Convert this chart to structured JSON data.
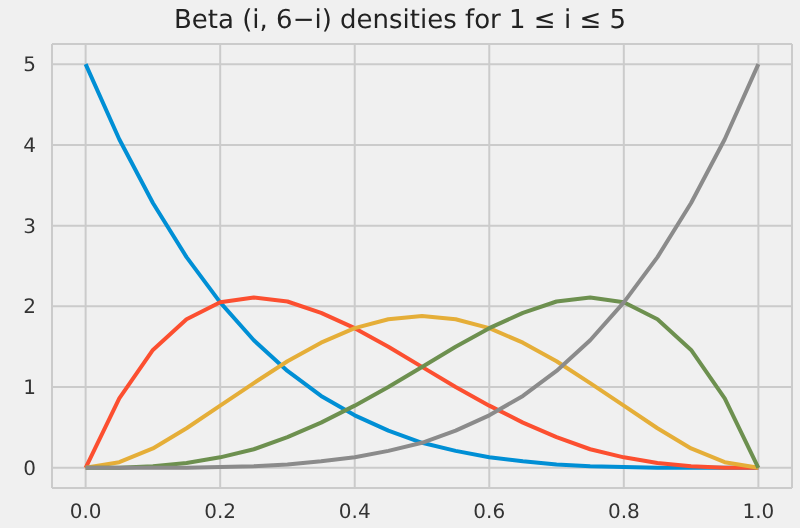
{
  "chart_data": {
    "type": "line",
    "title": "Beta (i, 6−i) densities for 1 ≤ i ≤ 5",
    "x": [
      0,
      0.05,
      0.1,
      0.15,
      0.2,
      0.25,
      0.3,
      0.35,
      0.4,
      0.45,
      0.5,
      0.55,
      0.6,
      0.65,
      0.7,
      0.75,
      0.8,
      0.85,
      0.9,
      0.95,
      1
    ],
    "series": [
      {
        "color": "#008fd5",
        "values": [
          5,
          4.07,
          3.28,
          2.61,
          2.05,
          1.58,
          1.2,
          0.89,
          0.65,
          0.46,
          0.31,
          0.21,
          0.13,
          0.08,
          0.04,
          0.02,
          0.01,
          0,
          0,
          0,
          0
        ]
      },
      {
        "color": "#fc4f30",
        "values": [
          0,
          0.86,
          1.46,
          1.84,
          2.05,
          2.11,
          2.06,
          1.92,
          1.73,
          1.5,
          1.25,
          1,
          0.77,
          0.56,
          0.38,
          0.23,
          0.13,
          0.06,
          0.02,
          0,
          0
        ]
      },
      {
        "color": "#e5ae38",
        "values": [
          0,
          0.07,
          0.24,
          0.49,
          0.77,
          1.05,
          1.32,
          1.55,
          1.73,
          1.84,
          1.88,
          1.84,
          1.73,
          1.55,
          1.32,
          1.05,
          0.77,
          0.49,
          0.24,
          0.07,
          0
        ]
      },
      {
        "color": "#6d904f",
        "values": [
          0,
          0,
          0.02,
          0.06,
          0.13,
          0.23,
          0.38,
          0.56,
          0.77,
          1,
          1.25,
          1.5,
          1.73,
          1.92,
          2.06,
          2.11,
          2.05,
          1.84,
          1.46,
          0.86,
          0
        ]
      },
      {
        "color": "#8b8b8b",
        "values": [
          0,
          0,
          0,
          0,
          0.01,
          0.02,
          0.04,
          0.08,
          0.13,
          0.21,
          0.31,
          0.46,
          0.65,
          0.89,
          1.2,
          1.58,
          2.05,
          2.61,
          3.28,
          4.07,
          5
        ]
      }
    ],
    "xlim": [
      -0.05,
      1.05
    ],
    "xticks": [
      {
        "value": 0,
        "label": "0.0"
      },
      {
        "value": 0.2,
        "label": "0.2"
      },
      {
        "value": 0.4,
        "label": "0.4"
      },
      {
        "value": 0.6,
        "label": "0.6"
      },
      {
        "value": 0.8,
        "label": "0.8"
      },
      {
        "value": 1,
        "label": "1.0"
      }
    ],
    "ylim": [
      -0.25,
      5.25
    ],
    "yticks": [
      0,
      1,
      2,
      3,
      4,
      5
    ],
    "grid": true,
    "marker": "none",
    "line_style": "solid"
  }
}
